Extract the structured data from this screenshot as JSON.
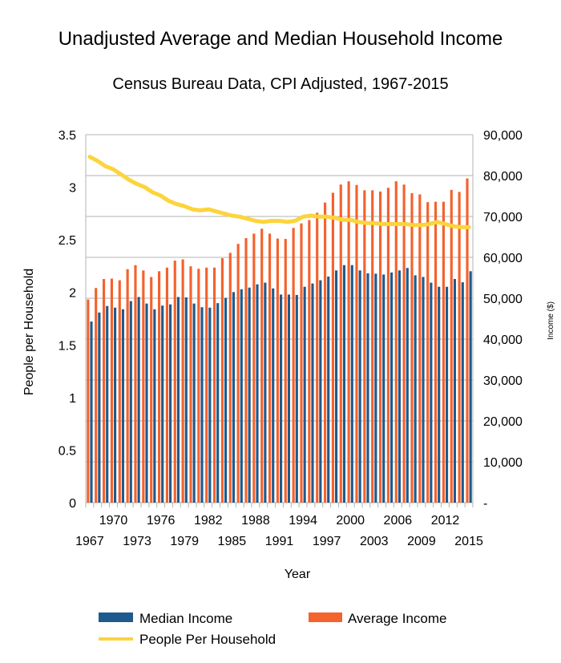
{
  "chart_data": {
    "type": "bar",
    "title": "Unadjusted Average and Median Household Income",
    "subtitle": "Census Bureau Data, CPI Adjusted, 1967-2015",
    "xlabel": "Year",
    "ylabel": "People per Household",
    "y2label": "Income ($)",
    "ylim": [
      0,
      3.5
    ],
    "y2lim": [
      0,
      90000
    ],
    "y_ticks": [
      "0",
      "0.5",
      "1",
      "1.5",
      "2",
      "2.5",
      "3",
      "3.5"
    ],
    "y2_ticks": [
      "-",
      "10,000",
      "20,000",
      "30,000",
      "40,000",
      "50,000",
      "60,000",
      "70,000",
      "80,000",
      "90,000"
    ],
    "x_ticks_row1": [
      "1970",
      "1976",
      "1982",
      "1988",
      "1994",
      "2000",
      "2006",
      "2012"
    ],
    "x_ticks_row2": [
      "1967",
      "1973",
      "1979",
      "1985",
      "1991",
      "1997",
      "2003",
      "2009",
      "2015"
    ],
    "grid": true,
    "legend_position": "bottom",
    "categories": [
      1967,
      1968,
      1969,
      1970,
      1971,
      1972,
      1973,
      1974,
      1975,
      1976,
      1977,
      1978,
      1979,
      1980,
      1981,
      1982,
      1983,
      1984,
      1985,
      1986,
      1987,
      1988,
      1989,
      1990,
      1991,
      1992,
      1993,
      1994,
      1995,
      1996,
      1997,
      1998,
      1999,
      2000,
      2001,
      2002,
      2003,
      2004,
      2005,
      2006,
      2007,
      2008,
      2009,
      2010,
      2011,
      2012,
      2013,
      2014,
      2015
    ],
    "series": [
      {
        "name": "Median Income",
        "type": "bar",
        "axis": "right",
        "color": "#1f5a8c",
        "values": [
          44300,
          46500,
          48100,
          47700,
          47300,
          49300,
          50300,
          48700,
          47300,
          48200,
          48500,
          50300,
          50200,
          48700,
          47800,
          47700,
          48800,
          50100,
          51500,
          52200,
          52600,
          53400,
          53800,
          52400,
          50900,
          50900,
          50800,
          52800,
          53600,
          54400,
          55300,
          56800,
          58100,
          58100,
          56800,
          56100,
          56000,
          55800,
          56300,
          56800,
          57400,
          55600,
          55200,
          53800,
          52800,
          52800,
          54700,
          53900,
          56600
        ]
      },
      {
        "name": "Average Income",
        "type": "bar",
        "axis": "right",
        "color": "#f4622d",
        "values": [
          49700,
          52500,
          54700,
          54800,
          54400,
          57100,
          58100,
          56800,
          55200,
          56600,
          57500,
          59200,
          59500,
          57800,
          57200,
          57500,
          57500,
          59800,
          61100,
          63300,
          64700,
          65800,
          67000,
          65800,
          64600,
          64500,
          67200,
          68300,
          69100,
          70900,
          73400,
          75800,
          77800,
          78600,
          77700,
          76400,
          76400,
          76100,
          77000,
          78600,
          77800,
          75700,
          75400,
          73500,
          73600,
          73600,
          76500,
          76000,
          79300
        ]
      },
      {
        "name": "People Per Household",
        "type": "line",
        "axis": "left",
        "color": "#fcd43c",
        "values": [
          3.29,
          3.25,
          3.2,
          3.17,
          3.12,
          3.07,
          3.03,
          3.0,
          2.95,
          2.92,
          2.87,
          2.84,
          2.82,
          2.79,
          2.78,
          2.79,
          2.77,
          2.75,
          2.73,
          2.72,
          2.7,
          2.68,
          2.67,
          2.68,
          2.68,
          2.67,
          2.68,
          2.72,
          2.73,
          2.72,
          2.72,
          2.71,
          2.69,
          2.69,
          2.67,
          2.66,
          2.66,
          2.65,
          2.65,
          2.65,
          2.65,
          2.64,
          2.64,
          2.65,
          2.67,
          2.65,
          2.63,
          2.62,
          2.62
        ]
      }
    ]
  }
}
